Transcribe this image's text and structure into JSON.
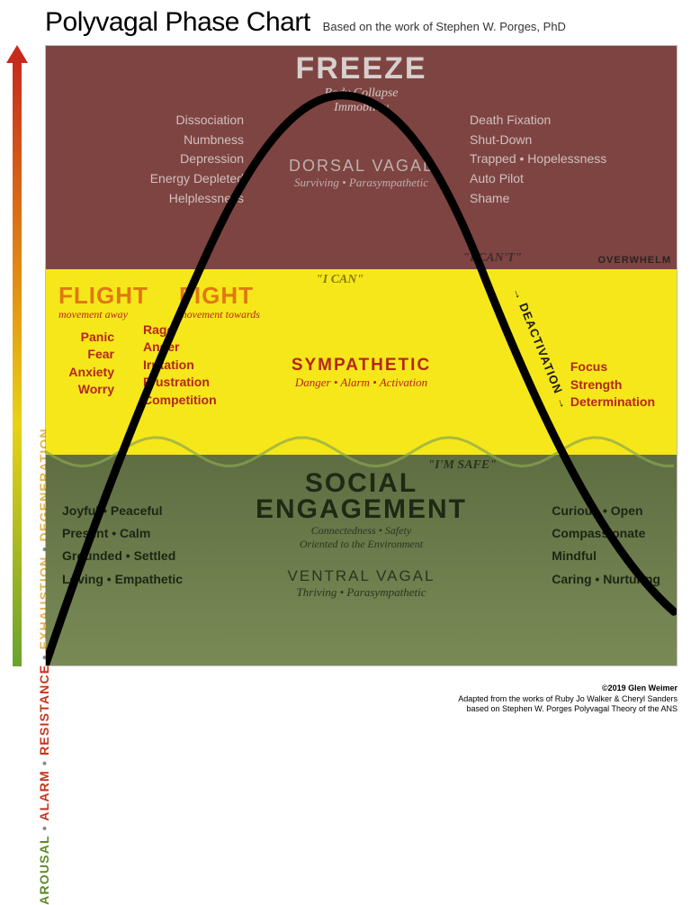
{
  "header": {
    "title": "Polyvagal Phase Chart",
    "subtitle": "Based on the work of Stephen W. Porges, PhD"
  },
  "axis": {
    "gradient_top": "#c72b1c",
    "gradient_mid1": "#e28a14",
    "gradient_mid2": "#e8d215",
    "gradient_bottom": "#6aa22e",
    "segments": [
      {
        "text": "DEGENERATION",
        "color": "#e6b54a"
      },
      {
        "text": "EXHAUSTION",
        "color": "#e6b54a"
      },
      {
        "text": "RESISTANCE",
        "color": "#c9341c"
      },
      {
        "text": "ALARM",
        "color": "#c9341c"
      },
      {
        "text": "AROUSAL",
        "color": "#5e8a2a"
      }
    ],
    "bullet": " • "
  },
  "zones": {
    "top": {
      "bg": "#7e4441",
      "title": "FREEZE",
      "title_color": "#d7cfce",
      "title_size": 34,
      "subheading": "Body Collapse\nImmobility",
      "sub_color": "#d2c7c5",
      "system": "DORSAL VAGAL",
      "system_sub": "Surviving • Parasympathetic",
      "system_color": "#bfb0ae",
      "left_words": "Dissociation\nNumbness\nDepression\nEnergy Depleted\nHelplessness",
      "right_words": "Death Fixation\nShut-Down\nTrapped • Hopelessness\nAuto Pilot\nShame",
      "words_color": "#cfc1bf",
      "quote": "\"I CAN'T\"",
      "quote_color": "#3a2f2e",
      "overwhelm": "OVERWHELM",
      "overwhelm_color": "#2a2422"
    },
    "mid": {
      "bg": "#f6e71a",
      "flight_title": "FLIGHT",
      "flight_sub": "movement away",
      "fight_title": "FIGHT",
      "fight_sub": "movement towards",
      "title_color": "#e07812",
      "sub_color": "#b5261b",
      "flight_words": "Panic\nFear\nAnxiety\nWorry",
      "fight_words": "Rage\nAnger\nIrritation\nFrustration\nCompetition",
      "words_color": "#b5261b",
      "system": "SYMPATHETIC",
      "system_sub": "Danger • Alarm • Activation",
      "system_color": "#b5261b",
      "right_words": "Focus\nStrength\nDetermination",
      "right_color": "#b5261b",
      "quote": "\"I CAN\"",
      "quote_color": "#8c7a08",
      "deactivation": "→ DEACTIVATION →"
    },
    "bot": {
      "bg": "#5f6e42",
      "title": "SOCIAL\nENGAGEMENT",
      "title_color": "#1e2915",
      "title_size": 30,
      "subheading": "Connectedness • Safety\nOriented to the Environment",
      "sub_color": "#2a351e",
      "system": "VENTRAL VAGAL",
      "system_sub": "Thriving • Parasympathetic",
      "system_color": "#2a351e",
      "left_words": "Joyful • Peaceful\nPresent • Calm\nGrounded • Settled\nLoving • Empathetic",
      "right_words": "Curious • Open\nCompassionate\nMindful\nCaring • Nurturing",
      "words_color": "#1c2614",
      "quote": "\"I'M SAFE\"",
      "quote_color": "#2a351e"
    }
  },
  "curve": {
    "color": "#000000",
    "width": 9,
    "wave_color": "#8aa64f",
    "wave_width": 3
  },
  "footer": {
    "line1": "©2019 Glen Weimer",
    "line2": "Adapted from the works of Ruby Jo Walker & Cheryl Sanders",
    "line3": "based on Stephen W. Porges Polyvagal Theory of the ANS"
  }
}
